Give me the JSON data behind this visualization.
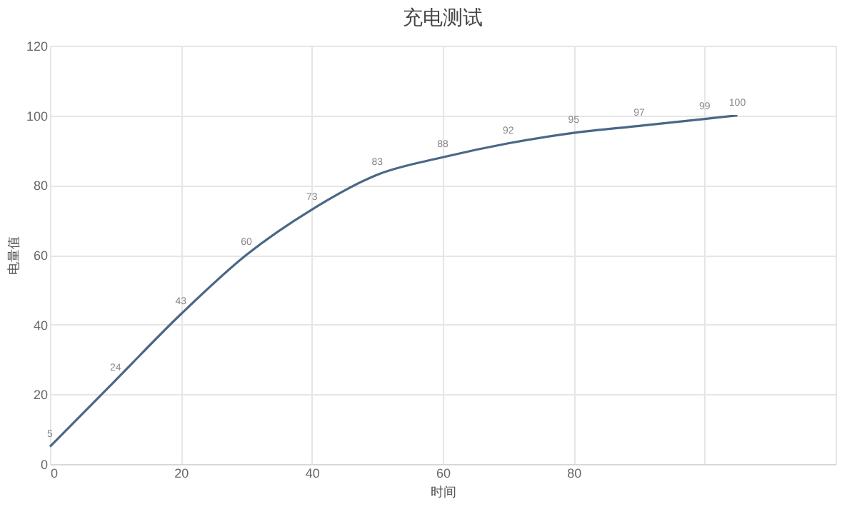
{
  "chart_data": {
    "type": "line",
    "title": "充电测试",
    "xlabel": "时间",
    "ylabel": "电量值",
    "x": [
      0,
      10,
      20,
      30,
      40,
      50,
      60,
      70,
      80,
      90,
      100,
      105
    ],
    "series": [
      {
        "color": "#4a6786",
        "values": [
          5,
          24,
          43,
          60,
          73,
          83,
          88,
          92,
          95,
          97,
          99,
          100
        ]
      }
    ],
    "xlim": [
      0,
      120
    ],
    "xticks": [
      0,
      20,
      40,
      60,
      80,
      {
        "value": 100,
        "label": null
      },
      {
        "value": 120,
        "label": null
      }
    ],
    "ylim": [
      0,
      120
    ],
    "yticks": [
      0,
      20,
      40,
      60,
      80,
      100,
      120
    ],
    "grid": true,
    "data_labels": true,
    "marker": "none",
    "line_style": "solid"
  }
}
